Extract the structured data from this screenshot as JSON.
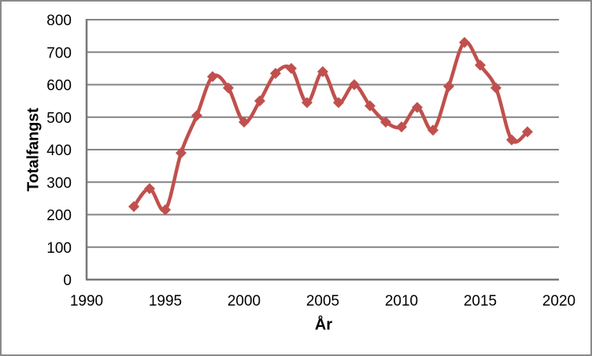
{
  "window": {
    "background": "#ffffff",
    "frame_color": "#8a8a8a"
  },
  "chart_data": {
    "type": "line",
    "title": "",
    "xlabel": "År",
    "ylabel": "Totalfangst",
    "xlim": [
      1990,
      2020
    ],
    "ylim": [
      0,
      800
    ],
    "x_ticks": [
      1990,
      1995,
      2000,
      2005,
      2010,
      2015,
      2020
    ],
    "y_ticks": [
      0,
      100,
      200,
      300,
      400,
      500,
      600,
      700,
      800
    ],
    "grid": "horizontal",
    "legend": "none",
    "marker": "diamond",
    "smoothed": true,
    "line_color": "#C0504D",
    "grid_color": "#848484",
    "axis_color": "#777777",
    "text_color": "#000000",
    "series": [
      {
        "name": "Totalfangst",
        "x": [
          1993,
          1994,
          1995,
          1996,
          1997,
          1998,
          1999,
          2000,
          2001,
          2002,
          2003,
          2004,
          2005,
          2006,
          2007,
          2008,
          2009,
          2010,
          2011,
          2012,
          2013,
          2014,
          2015,
          2016,
          2017,
          2018
        ],
        "y": [
          225,
          280,
          215,
          390,
          505,
          625,
          590,
          485,
          550,
          635,
          650,
          545,
          640,
          545,
          600,
          535,
          485,
          470,
          530,
          460,
          595,
          730,
          660,
          590,
          430,
          455
        ]
      }
    ]
  }
}
